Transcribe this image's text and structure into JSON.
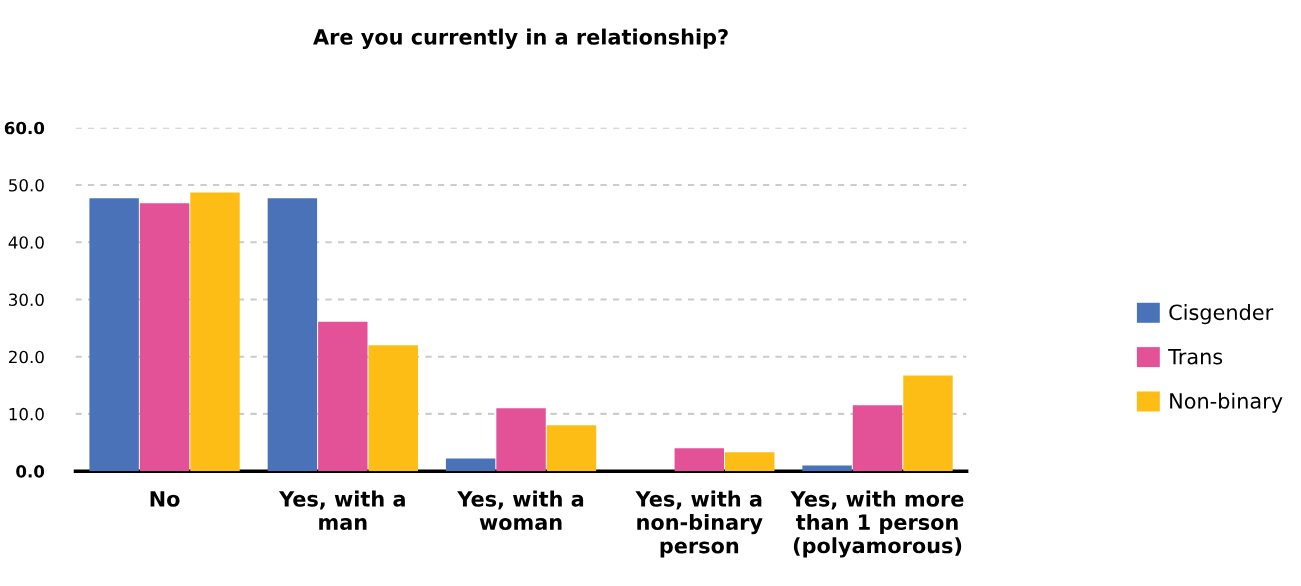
{
  "chart_data": {
    "type": "bar",
    "title": "Are you currently in a relationship?",
    "categories": [
      "No",
      "Yes, with a man",
      "Yes, with a woman",
      "Yes, with a non-binary person",
      "Yes, with more than 1 person (polyamorous)"
    ],
    "series": [
      {
        "name": "Cisgender",
        "color": "#4a72b8",
        "values": [
          47.7,
          47.7,
          2.2,
          0,
          1.0
        ]
      },
      {
        "name": "Trans",
        "color": "#e35297",
        "values": [
          46.8,
          26.1,
          11.0,
          4.0,
          11.5
        ]
      },
      {
        "name": "Non-binary",
        "color": "#fdbd14",
        "values": [
          48.7,
          22.0,
          8.0,
          3.3,
          16.7
        ]
      }
    ],
    "ylim": [
      0,
      60
    ],
    "yticks": [
      {
        "value": 0,
        "label": "0.0"
      },
      {
        "value": 10,
        "label": "10.0"
      },
      {
        "value": 20,
        "label": "20.0"
      },
      {
        "value": 30,
        "label": "30.0"
      },
      {
        "value": 40,
        "label": "40.0"
      },
      {
        "value": 50,
        "label": "50.0"
      },
      {
        "value": 60,
        "label": "60.0"
      }
    ],
    "grid": "y",
    "legend": "right"
  }
}
